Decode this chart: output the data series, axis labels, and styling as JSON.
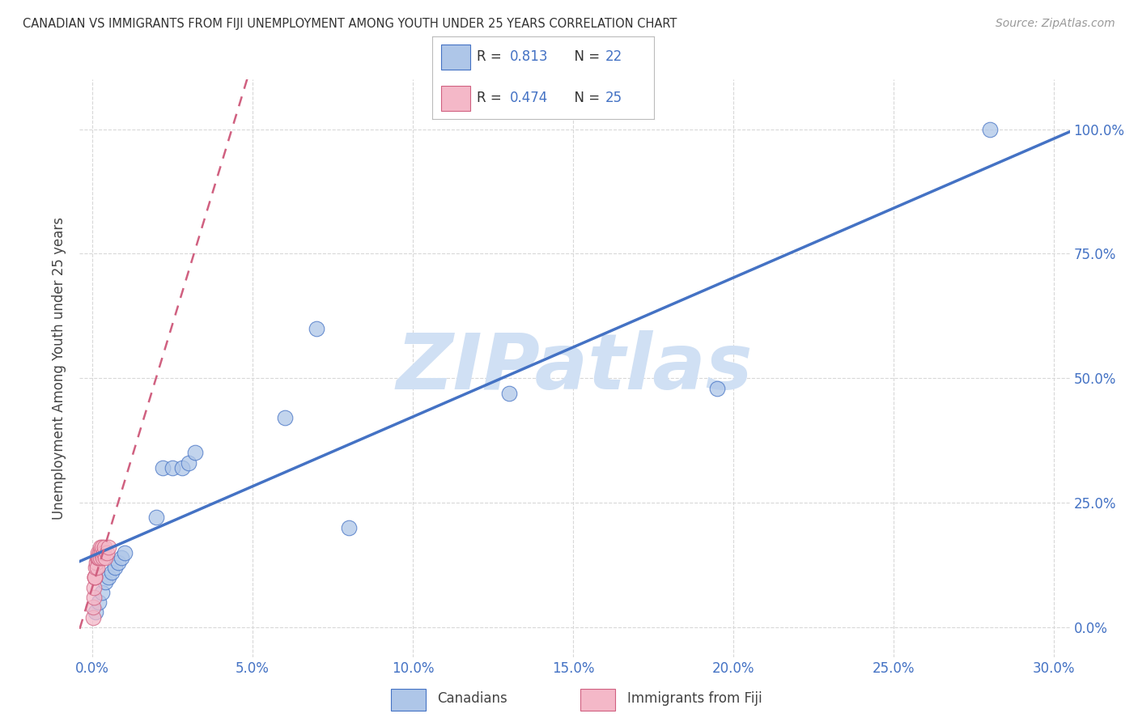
{
  "title": "CANADIAN VS IMMIGRANTS FROM FIJI UNEMPLOYMENT AMONG YOUTH UNDER 25 YEARS CORRELATION CHART",
  "source": "Source: ZipAtlas.com",
  "ylabel": "Unemployment Among Youth under 25 years",
  "canadians_R": 0.813,
  "canadians_N": 22,
  "fiji_R": 0.474,
  "fiji_N": 25,
  "canadians_color": "#aec6e8",
  "fiji_color": "#f4b8c8",
  "canadians_line_color": "#4472c4",
  "fiji_line_color": "#d06080",
  "watermark": "ZIPatlas",
  "watermark_color": "#d0e0f4",
  "legend_canadians": "Canadians",
  "legend_fiji": "Immigrants from Fiji",
  "background_color": "#ffffff",
  "grid_color": "#d8d8d8",
  "canadians_x": [
    0.001,
    0.002,
    0.003,
    0.004,
    0.005,
    0.006,
    0.007,
    0.008,
    0.009,
    0.01,
    0.02,
    0.022,
    0.025,
    0.028,
    0.03,
    0.032,
    0.06,
    0.07,
    0.08,
    0.13,
    0.195,
    0.28
  ],
  "canadians_y": [
    0.03,
    0.05,
    0.07,
    0.09,
    0.1,
    0.11,
    0.12,
    0.13,
    0.14,
    0.15,
    0.22,
    0.32,
    0.32,
    0.32,
    0.33,
    0.35,
    0.42,
    0.6,
    0.2,
    0.47,
    0.48,
    1.0
  ],
  "fiji_x": [
    0.0002,
    0.0003,
    0.0004,
    0.0005,
    0.0006,
    0.0007,
    0.0008,
    0.001,
    0.0012,
    0.0014,
    0.0015,
    0.0016,
    0.0018,
    0.002,
    0.0022,
    0.0024,
    0.0025,
    0.0027,
    0.003,
    0.0032,
    0.0035,
    0.0038,
    0.004,
    0.0045,
    0.005
  ],
  "fiji_y": [
    0.02,
    0.04,
    0.06,
    0.08,
    0.1,
    0.1,
    0.1,
    0.12,
    0.13,
    0.14,
    0.12,
    0.14,
    0.15,
    0.14,
    0.15,
    0.14,
    0.16,
    0.15,
    0.16,
    0.14,
    0.15,
    0.16,
    0.14,
    0.15,
    0.16
  ],
  "x_tick_vals": [
    0.0,
    0.05,
    0.1,
    0.15,
    0.2,
    0.25,
    0.3
  ],
  "x_tick_labels": [
    "0.0%",
    "5.0%",
    "10.0%",
    "15.0%",
    "20.0%",
    "25.0%",
    "30.0%"
  ],
  "y_tick_vals": [
    0.0,
    0.25,
    0.5,
    0.75,
    1.0
  ],
  "y_tick_labels": [
    "0.0%",
    "25.0%",
    "50.0%",
    "75.0%",
    "100.0%"
  ],
  "xlim": [
    -0.004,
    0.305
  ],
  "ylim": [
    -0.06,
    1.1
  ],
  "marker_size": 180,
  "marker_alpha": 0.75
}
